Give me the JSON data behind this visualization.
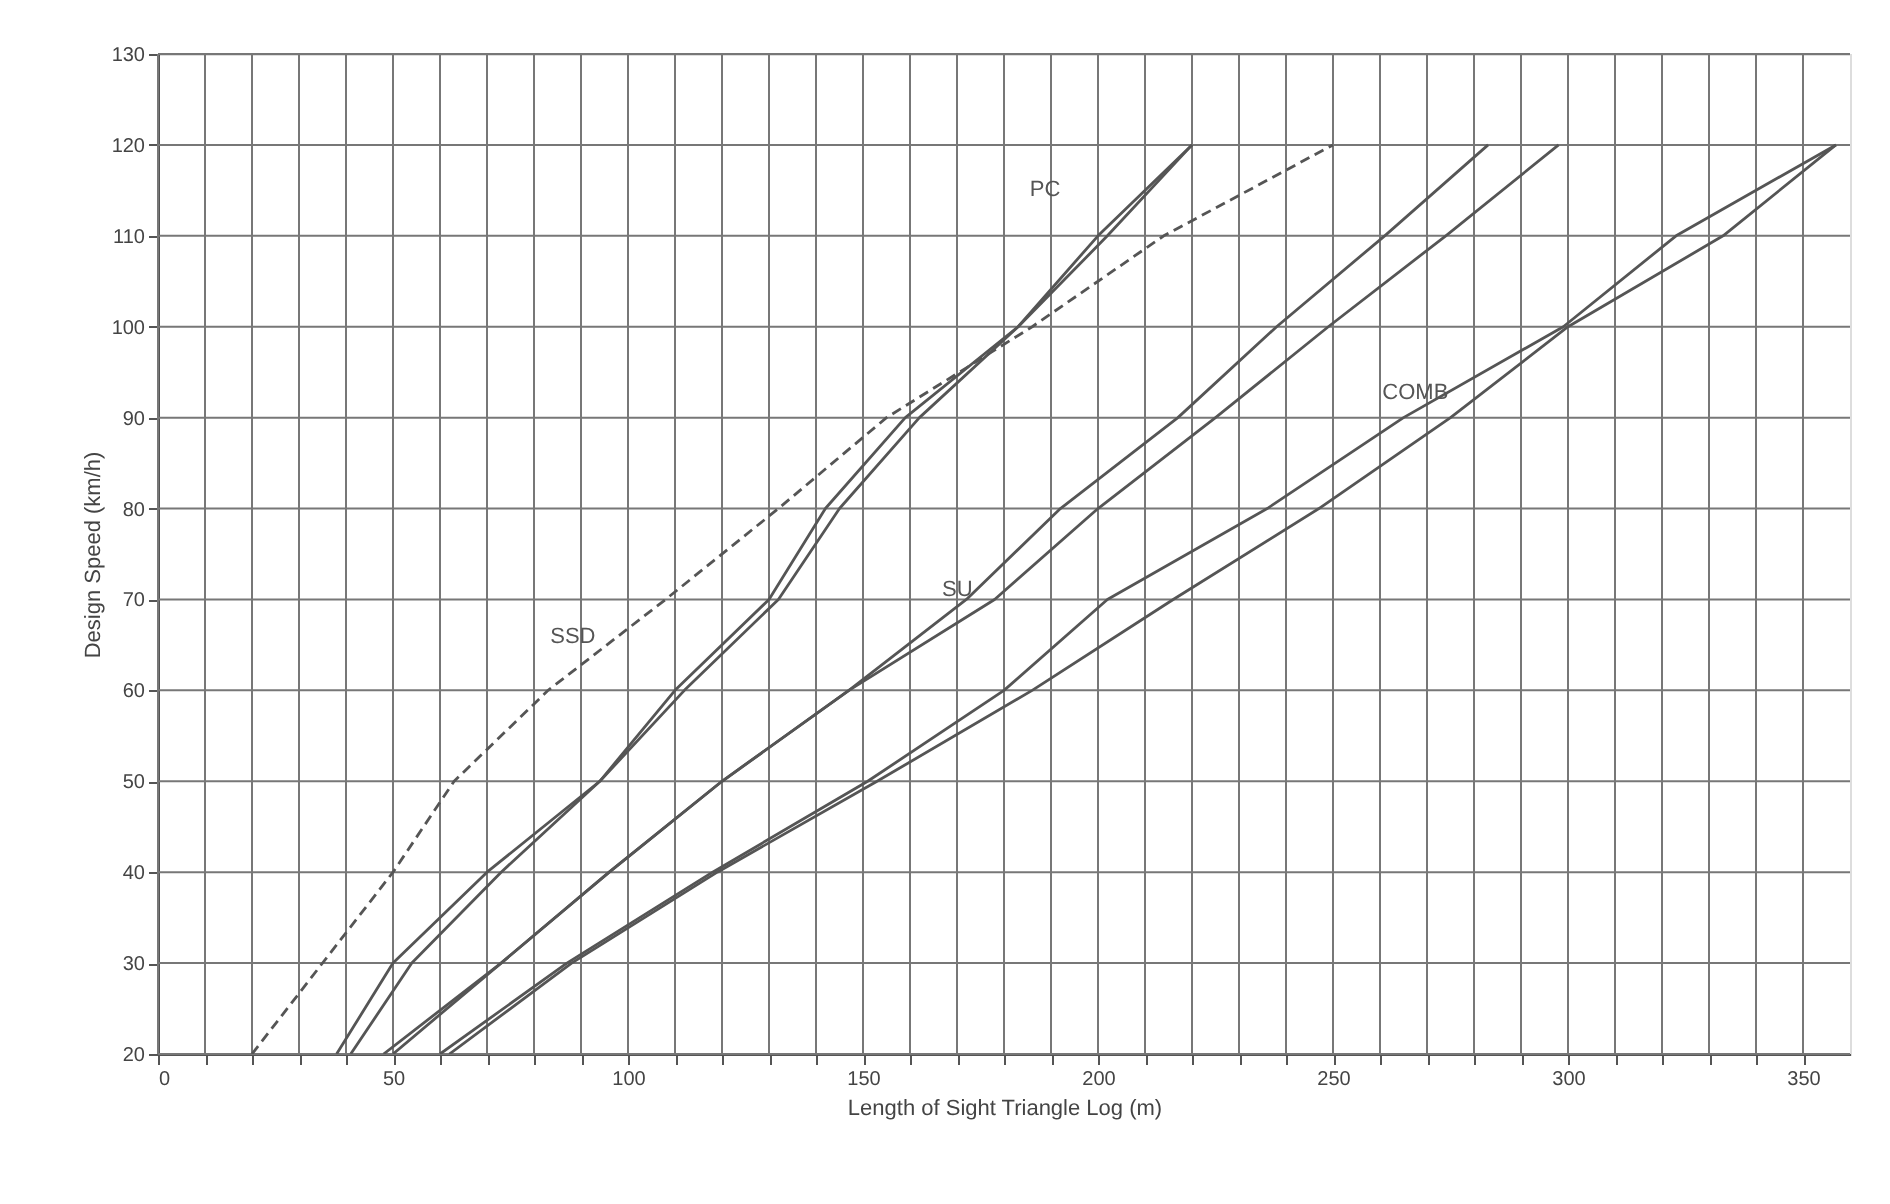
{
  "chart_data": {
    "type": "line",
    "xlabel": "Length of Sight Triangle Log (m)",
    "ylabel": "Design Speed (km/h)",
    "xlim": [
      0,
      360
    ],
    "ylim": [
      20,
      130
    ],
    "xticks": [
      0,
      {
        "value": 10,
        "label": null
      },
      {
        "value": 20,
        "label": null
      },
      {
        "value": 30,
        "label": null
      },
      {
        "value": 40,
        "label": null
      },
      50,
      {
        "value": 60,
        "label": null
      },
      {
        "value": 70,
        "label": null
      },
      {
        "value": 80,
        "label": null
      },
      {
        "value": 90,
        "label": null
      },
      100,
      {
        "value": 110,
        "label": null
      },
      {
        "value": 120,
        "label": null
      },
      {
        "value": 130,
        "label": null
      },
      {
        "value": 140,
        "label": null
      },
      150,
      {
        "value": 160,
        "label": null
      },
      {
        "value": 170,
        "label": null
      },
      {
        "value": 180,
        "label": null
      },
      {
        "value": 190,
        "label": null
      },
      200,
      {
        "value": 210,
        "label": null
      },
      {
        "value": 220,
        "label": null
      },
      {
        "value": 230,
        "label": null
      },
      {
        "value": 240,
        "label": null
      },
      250,
      {
        "value": 260,
        "label": null
      },
      {
        "value": 270,
        "label": null
      },
      {
        "value": 280,
        "label": null
      },
      {
        "value": 290,
        "label": null
      },
      300,
      {
        "value": 310,
        "label": null
      },
      {
        "value": 320,
        "label": null
      },
      {
        "value": 330,
        "label": null
      },
      {
        "value": 340,
        "label": null
      },
      350
    ],
    "yticks": [
      20,
      30,
      40,
      50,
      60,
      70,
      80,
      90,
      100,
      110,
      120,
      130
    ],
    "grid": true,
    "marker": "none",
    "series": [
      {
        "name": "SSD",
        "color": "#555555",
        "line_style": "dashed",
        "x": [
          20,
          50,
          63,
          83,
          108,
          132,
          155,
          186,
          214,
          250
        ],
        "values": [
          20,
          40,
          50,
          60,
          70,
          80,
          90,
          100,
          110,
          120
        ]
      },
      {
        "name": "PC",
        "color": "#555555",
        "line_style": "solid",
        "x": [
          38,
          50,
          70,
          94,
          110,
          130,
          142,
          159,
          183,
          200,
          220
        ],
        "values": [
          20,
          30,
          40,
          50,
          60,
          70,
          80,
          90,
          100,
          110,
          120
        ]
      },
      {
        "color": "#555555",
        "line_style": "solid",
        "x": [
          41,
          54,
          73,
          94,
          112,
          132,
          145,
          162,
          183,
          202,
          220
        ],
        "values": [
          20,
          30,
          40,
          50,
          60,
          70,
          80,
          90,
          100,
          110,
          120
        ]
      },
      {
        "name": "SU",
        "color": "#555555",
        "line_style": "solid",
        "x": [
          48,
          73,
          96,
          120,
          147,
          172,
          192,
          217,
          238,
          261,
          283
        ],
        "values": [
          20,
          30,
          40,
          50,
          60,
          70,
          80,
          90,
          100,
          110,
          120
        ]
      },
      {
        "color": "#555555",
        "line_style": "solid",
        "x": [
          50,
          73,
          96,
          120,
          147,
          178,
          200,
          225,
          249,
          274,
          298
        ],
        "values": [
          20,
          30,
          40,
          50,
          60,
          70,
          80,
          90,
          100,
          110,
          120
        ]
      },
      {
        "name": "COMB",
        "color": "#555555",
        "line_style": "solid",
        "x": [
          60,
          87,
          118,
          151,
          180,
          202,
          236,
          265,
          299,
          323,
          357
        ],
        "values": [
          20,
          30,
          40,
          50,
          60,
          70,
          80,
          90,
          100,
          110,
          120
        ]
      },
      {
        "color": "#555555",
        "line_style": "solid",
        "x": [
          62,
          88,
          119,
          153,
          186,
          216,
          247,
          275,
          300,
          333,
          357
        ],
        "values": [
          20,
          30,
          40,
          50,
          60,
          70,
          80,
          90,
          100,
          110,
          120
        ]
      }
    ]
  }
}
